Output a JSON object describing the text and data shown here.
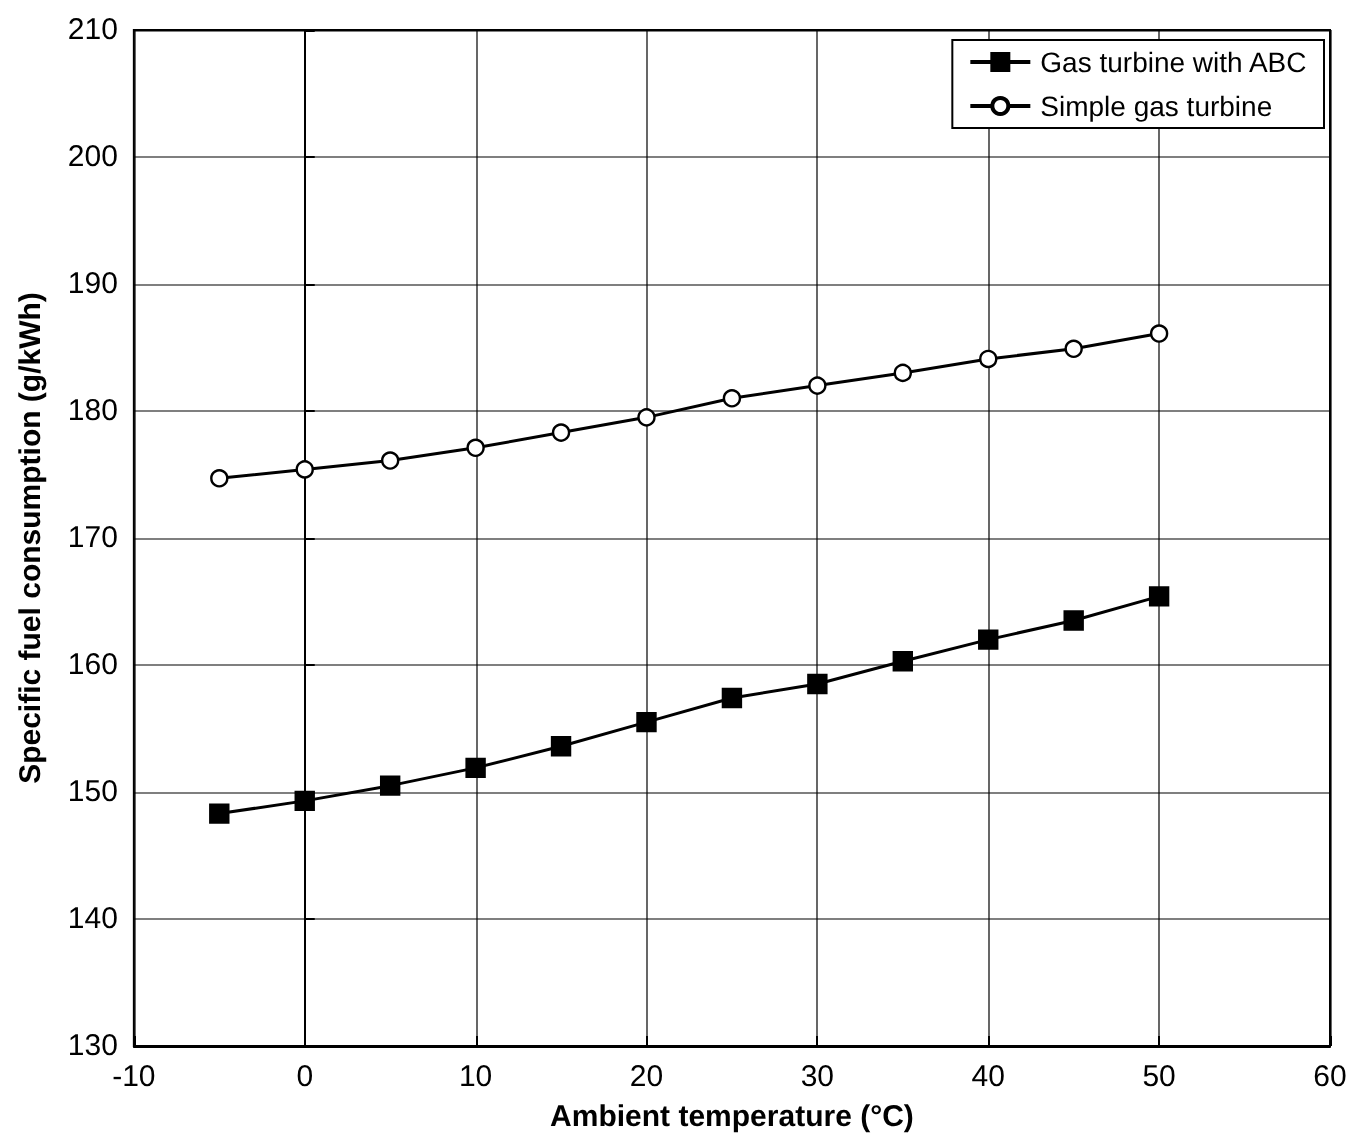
{
  "chart_data": {
    "type": "line",
    "xlabel": "Ambient temperature (°C)",
    "ylabel": "Specific fuel consumption (g/kWh)",
    "x": [
      -5,
      0,
      5,
      10,
      15,
      20,
      25,
      30,
      35,
      40,
      45,
      50
    ],
    "series": [
      {
        "name": "Gas turbine with ABC",
        "color": "#000000",
        "marker": "square",
        "values": [
          148.3,
          149.3,
          150.5,
          151.9,
          153.6,
          155.5,
          157.4,
          158.5,
          160.3,
          162.0,
          163.5,
          165.4
        ]
      },
      {
        "name": "Simple gas turbine",
        "color": "#000000",
        "marker": "circle",
        "values": [
          174.7,
          175.4,
          176.1,
          177.1,
          178.3,
          179.5,
          181.0,
          182.0,
          183.0,
          184.1,
          184.9,
          186.1
        ]
      }
    ],
    "xlim": [
      -10,
      60
    ],
    "xticks": [
      -10,
      0,
      10,
      20,
      30,
      40,
      50,
      60
    ],
    "ylim": [
      130,
      210
    ],
    "yticks": [
      130,
      140,
      150,
      160,
      170,
      180,
      190,
      200,
      210
    ],
    "grid": true,
    "legend": "top right",
    "line_style": "solid"
  }
}
